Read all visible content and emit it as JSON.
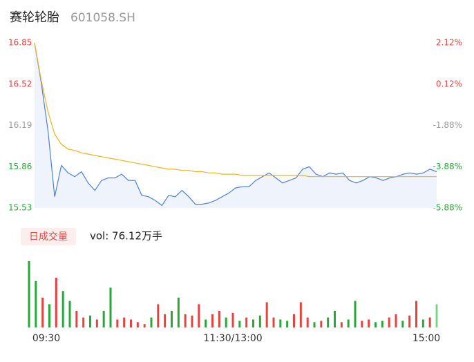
{
  "chart_data": [
    {
      "type": "line",
      "title": "赛轮轮胎",
      "subtitle": "601058.SH",
      "series": [
        {
          "name": "price",
          "color": "#4a7fe0",
          "values": [
            16.85,
            16.53,
            16.15,
            15.62,
            15.87,
            15.81,
            15.78,
            15.82,
            15.73,
            15.67,
            15.75,
            15.77,
            15.77,
            15.8,
            15.75,
            15.75,
            15.63,
            15.62,
            15.59,
            15.55,
            15.63,
            15.62,
            15.67,
            15.62,
            15.56,
            15.56,
            15.57,
            15.59,
            15.62,
            15.65,
            15.69,
            15.7,
            15.7,
            15.75,
            15.78,
            15.81,
            15.77,
            15.73,
            15.75,
            15.77,
            15.84,
            15.86,
            15.8,
            15.78,
            15.81,
            15.8,
            15.81,
            15.75,
            15.73,
            15.75,
            15.78,
            15.77,
            15.75,
            15.77,
            15.78,
            15.8,
            15.81,
            15.8,
            15.81,
            15.84,
            15.82
          ]
        },
        {
          "name": "average",
          "color": "#f0b323",
          "values": [
            16.85,
            16.55,
            16.3,
            16.12,
            16.04,
            16.0,
            15.99,
            15.97,
            15.96,
            15.95,
            15.94,
            15.93,
            15.92,
            15.91,
            15.9,
            15.89,
            15.88,
            15.87,
            15.86,
            15.85,
            15.84,
            15.84,
            15.83,
            15.83,
            15.82,
            15.82,
            15.81,
            15.81,
            15.8,
            15.8,
            15.8,
            15.79,
            15.79,
            15.79,
            15.79,
            15.79,
            15.79,
            15.79,
            15.79,
            15.79,
            15.79,
            15.78,
            15.78,
            15.78,
            15.78,
            15.78,
            15.78,
            15.78,
            15.78,
            15.78,
            15.78,
            15.78,
            15.78,
            15.78,
            15.78,
            15.78,
            15.78,
            15.78,
            15.78,
            15.78,
            15.78
          ]
        }
      ],
      "ylim": [
        15.53,
        16.85
      ],
      "yticks": [
        16.85,
        16.52,
        16.19,
        15.86,
        15.53
      ],
      "y2lim": [
        -5.88,
        2.12
      ],
      "y2ticks": [
        {
          "value": 2.12,
          "label": "2.12%"
        },
        {
          "value": 0.12,
          "label": "0.12%"
        },
        {
          "value": -1.88,
          "label": "-1.88%"
        },
        {
          "value": -3.88,
          "label": "-3.88%"
        },
        {
          "value": -5.88,
          "label": "-5.88%"
        }
      ],
      "tick_colors": [
        "#e8413f",
        "#e8413f",
        "#999999",
        "#2aa63a",
        "#2aa63a"
      ],
      "area_color": "#eef3fc"
    },
    {
      "type": "bar",
      "title": "日成交量",
      "annotation": "vol: 76.12万手",
      "categories": [
        "09:30",
        null,
        null,
        null,
        null,
        null,
        null,
        null,
        null,
        null,
        null,
        null,
        null,
        null,
        null,
        null,
        null,
        null,
        null,
        null,
        null,
        null,
        null,
        null,
        null,
        null,
        null,
        null,
        null,
        null,
        "11:30/13:00",
        null,
        null,
        null,
        null,
        null,
        null,
        null,
        null,
        null,
        null,
        null,
        null,
        null,
        null,
        null,
        null,
        null,
        null,
        null,
        null,
        null,
        null,
        null,
        null,
        null,
        null,
        null,
        null,
        null,
        "15:00"
      ],
      "values": [
        100,
        70,
        45,
        35,
        75,
        55,
        40,
        25,
        15,
        18,
        12,
        25,
        60,
        12,
        15,
        12,
        8,
        5,
        15,
        35,
        20,
        25,
        45,
        20,
        18,
        35,
        12,
        20,
        25,
        15,
        22,
        10,
        15,
        12,
        18,
        38,
        15,
        12,
        10,
        20,
        38,
        15,
        8,
        10,
        15,
        25,
        8,
        12,
        40,
        10,
        12,
        8,
        10,
        15,
        20,
        10,
        18,
        40,
        12,
        15,
        35
      ],
      "colors": [
        "#2aa63a",
        "#2aa63a",
        "#e8413f",
        "#2aa63a",
        "#e8413f",
        "#2aa63a",
        "#2aa63a",
        "#e8413f",
        "#e8413f",
        "#2aa63a",
        "#e8413f",
        "#2aa63a",
        "#2aa63a",
        "#e8413f",
        "#e8413f",
        "#e8413f",
        "#e8413f",
        "#e8413f",
        "#2aa63a",
        "#e8413f",
        "#e8413f",
        "#2aa63a",
        "#2aa63a",
        "#e8413f",
        "#e8413f",
        "#e8413f",
        "#2aa63a",
        "#e8413f",
        "#e8413f",
        "#2aa63a",
        "#e8413f",
        "#2aa63a",
        "#e8413f",
        "#2aa63a",
        "#2aa63a",
        "#e8413f",
        "#e8413f",
        "#2aa63a",
        "#2aa63a",
        "#e8413f",
        "#e8413f",
        "#e8413f",
        "#2aa63a",
        "#e8413f",
        "#2aa63a",
        "#2aa63a",
        "#e8413f",
        "#2aa63a",
        "#2aa63a",
        "#e8413f",
        "#e8413f",
        "#2aa63a",
        "#2aa63a",
        "#e8413f",
        "#e8413f",
        "#2aa63a",
        "#e8413f",
        "#e8413f",
        "#2aa63a",
        "#e8413f",
        "#7fd18a"
      ],
      "ylim": [
        0,
        100
      ]
    }
  ]
}
